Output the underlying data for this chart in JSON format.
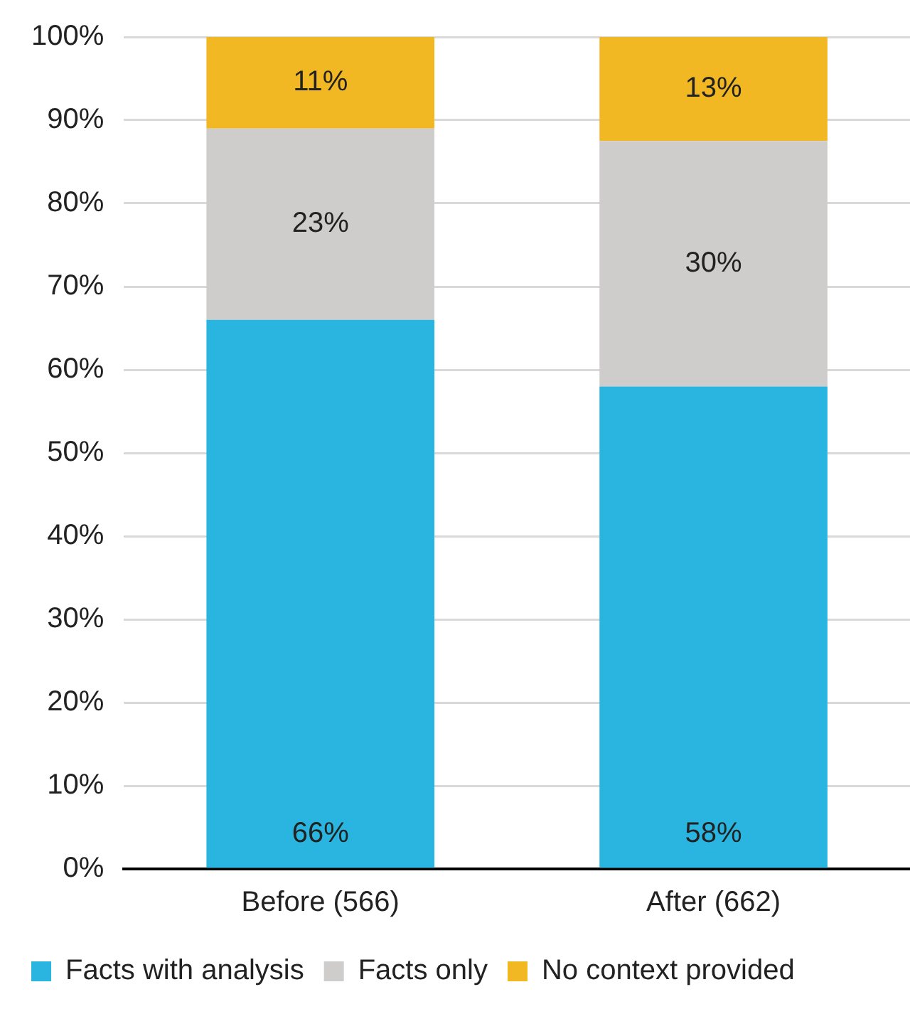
{
  "chart_data": {
    "type": "bar",
    "stacked": true,
    "categories": [
      "Before (566)",
      "After (662)"
    ],
    "series": [
      {
        "name": "Facts with analysis",
        "color": "#29b5e0",
        "values": [
          66,
          58
        ],
        "value_labels": [
          "66%",
          "58%"
        ]
      },
      {
        "name": "Facts only",
        "color": "#cfcdcb",
        "values": [
          23,
          29.5
        ],
        "value_labels": [
          "23%",
          "30%"
        ]
      },
      {
        "name": "No context provided",
        "color": "#f2b824",
        "values": [
          11,
          12.5
        ],
        "value_labels": [
          "11%",
          "13%"
        ]
      }
    ],
    "ylim": [
      0,
      100
    ],
    "yticks": [
      {
        "value": 0,
        "label": "0%"
      },
      {
        "value": 10,
        "label": "10%"
      },
      {
        "value": 20,
        "label": "20%"
      },
      {
        "value": 30,
        "label": "30%"
      },
      {
        "value": 40,
        "label": "40%"
      },
      {
        "value": 50,
        "label": "50%"
      },
      {
        "value": 60,
        "label": "60%"
      },
      {
        "value": 70,
        "label": "70%"
      },
      {
        "value": 80,
        "label": "80%"
      },
      {
        "value": 90,
        "label": "90%"
      },
      {
        "value": 100,
        "label": "100%"
      }
    ],
    "grid": "y",
    "legend": "bottom"
  }
}
